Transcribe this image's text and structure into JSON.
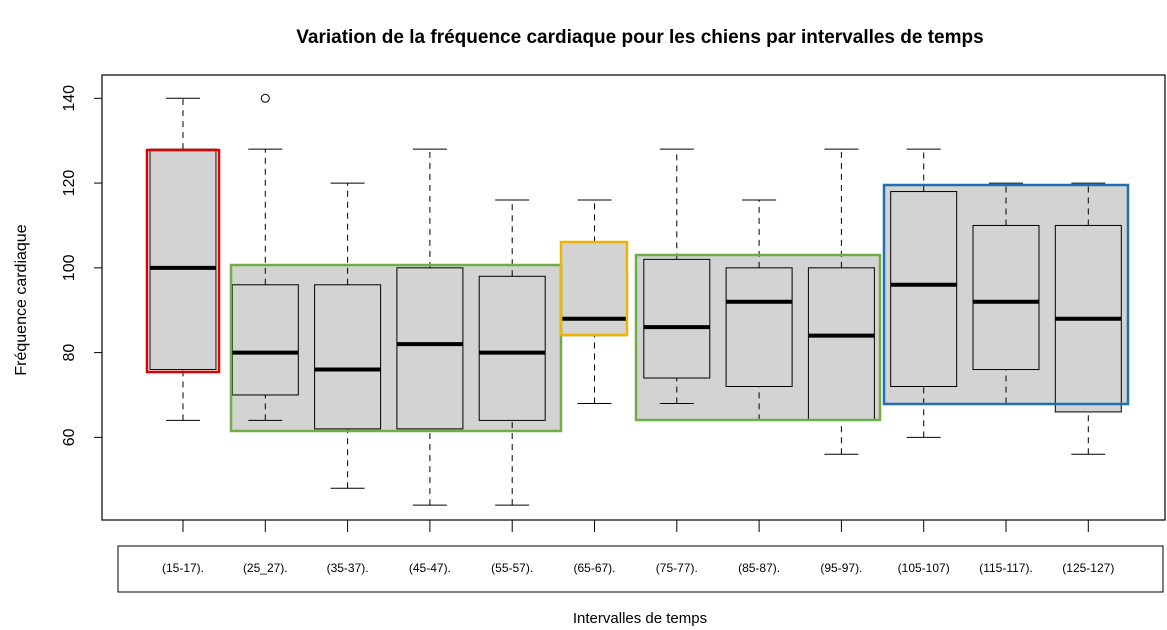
{
  "chart_data": {
    "type": "box",
    "title": "Variation de la fréquence cardiaque pour les chiens par intervalles de temps",
    "x_label": "Intervalles de temps",
    "y_label": "Fréquence cardiaque",
    "categories": [
      "(15-17).",
      "(25_27).",
      "(35-37).",
      "(45-47).",
      "(55-57).",
      "(65-67).",
      "(75-77).",
      "(85-87).",
      "(95-97).",
      "(105-107)",
      "(115-117).",
      "(125-127)"
    ],
    "boxes": [
      {
        "whisker_low": 64,
        "q1": 76,
        "median": 100,
        "q3": 128,
        "whisker_high": 140,
        "outliers": []
      },
      {
        "whisker_low": 64,
        "q1": 70,
        "median": 80,
        "q3": 96,
        "whisker_high": 128,
        "outliers": [
          140
        ]
      },
      {
        "whisker_low": 48,
        "q1": 62,
        "median": 76,
        "q3": 96,
        "whisker_high": 120,
        "outliers": []
      },
      {
        "whisker_low": 44,
        "q1": 62,
        "median": 82,
        "q3": 100,
        "whisker_high": 128,
        "outliers": []
      },
      {
        "whisker_low": 44,
        "q1": 64,
        "median": 80,
        "q3": 98,
        "whisker_high": 116,
        "outliers": []
      },
      {
        "whisker_low": 68,
        "q1": 84,
        "median": 88,
        "q3": 106,
        "whisker_high": 116,
        "outliers": []
      },
      {
        "whisker_low": 68,
        "q1": 74,
        "median": 86,
        "q3": 102,
        "whisker_high": 128,
        "outliers": []
      },
      {
        "whisker_low": 64,
        "q1": 72,
        "median": 92,
        "q3": 100,
        "whisker_high": 116,
        "outliers": []
      },
      {
        "whisker_low": 56,
        "q1": 64,
        "median": 84,
        "q3": 100,
        "whisker_high": 128,
        "outliers": []
      },
      {
        "whisker_low": 60,
        "q1": 72,
        "median": 96,
        "q3": 118,
        "whisker_high": 128,
        "outliers": []
      },
      {
        "whisker_low": 68,
        "q1": 76,
        "median": 92,
        "q3": 110,
        "whisker_high": 120,
        "outliers": []
      },
      {
        "whisker_low": 56,
        "q1": 66,
        "median": 88,
        "q3": 110,
        "whisker_high": 120,
        "outliers": []
      }
    ],
    "box_color": "#d3d3d3",
    "ylim": [
      40.5,
      145.5
    ],
    "yticks": [
      60,
      80,
      100,
      120,
      140
    ]
  }
}
